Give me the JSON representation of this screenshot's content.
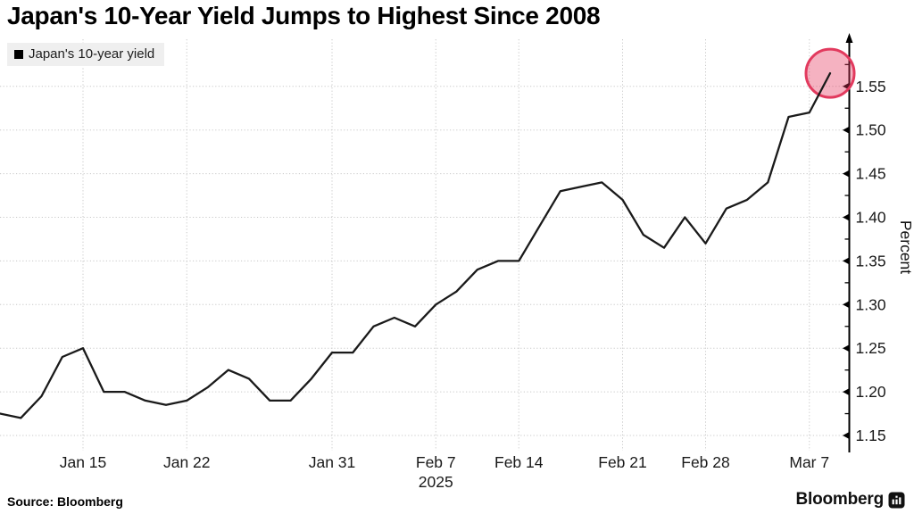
{
  "header": {
    "title": "Japan's 10-Year Yield Jumps to Highest Since 2008"
  },
  "legend": {
    "label": "Japan's 10-year yield",
    "marker_color": "#000000"
  },
  "chart_data": {
    "type": "line",
    "title": "Japan's 10-Year Yield Jumps to Highest Since 2008",
    "ylabel": "Percent",
    "grid": "dotted",
    "legend_position": "top-left",
    "colors": {
      "line": "#1a1a1a",
      "grid": "#c8c8c8",
      "axis": "#000000",
      "tick_text": "#1a1a1a"
    },
    "y_axis": {
      "side": "right",
      "min": 1.15,
      "max": 1.58,
      "major_ticks": [
        1.15,
        1.2,
        1.25,
        1.3,
        1.35,
        1.4,
        1.45,
        1.5,
        1.55
      ],
      "minor_tick_step": 0.025,
      "unit_label": "Percent"
    },
    "x_axis": {
      "ticks": [
        {
          "label": "Jan 15",
          "point_index": 4
        },
        {
          "label": "Jan 22",
          "point_index": 9
        },
        {
          "label": "Jan 31",
          "point_index": 16
        },
        {
          "label": "Feb 7",
          "point_index": 21
        },
        {
          "label": "Feb 14",
          "point_index": 25
        },
        {
          "label": "Feb 21",
          "point_index": 30
        },
        {
          "label": "Feb 28",
          "point_index": 34
        },
        {
          "label": "Mar 7",
          "point_index": 39
        }
      ],
      "year": {
        "text": "2025",
        "point_index": 21
      }
    },
    "series": [
      {
        "name": "Japan's 10-year yield",
        "color": "#1a1a1a",
        "points": [
          {
            "date": "Jan 8",
            "value": 1.175
          },
          {
            "date": "Jan 9",
            "value": 1.17
          },
          {
            "date": "Jan 10",
            "value": 1.195
          },
          {
            "date": "Jan 14",
            "value": 1.24
          },
          {
            "date": "Jan 15",
            "value": 1.25
          },
          {
            "date": "Jan 16",
            "value": 1.2
          },
          {
            "date": "Jan 17",
            "value": 1.2
          },
          {
            "date": "Jan 20",
            "value": 1.19
          },
          {
            "date": "Jan 21",
            "value": 1.185
          },
          {
            "date": "Jan 22",
            "value": 1.19
          },
          {
            "date": "Jan 23",
            "value": 1.205
          },
          {
            "date": "Jan 24",
            "value": 1.225
          },
          {
            "date": "Jan 27",
            "value": 1.215
          },
          {
            "date": "Jan 28",
            "value": 1.19
          },
          {
            "date": "Jan 29",
            "value": 1.19
          },
          {
            "date": "Jan 30",
            "value": 1.215
          },
          {
            "date": "Jan 31",
            "value": 1.245
          },
          {
            "date": "Feb 3",
            "value": 1.245
          },
          {
            "date": "Feb 4",
            "value": 1.275
          },
          {
            "date": "Feb 5",
            "value": 1.285
          },
          {
            "date": "Feb 6",
            "value": 1.275
          },
          {
            "date": "Feb 7",
            "value": 1.3
          },
          {
            "date": "Feb 10",
            "value": 1.315
          },
          {
            "date": "Feb 12",
            "value": 1.34
          },
          {
            "date": "Feb 13",
            "value": 1.35
          },
          {
            "date": "Feb 14",
            "value": 1.35
          },
          {
            "date": "Feb 17",
            "value": 1.39
          },
          {
            "date": "Feb 18",
            "value": 1.43
          },
          {
            "date": "Feb 19",
            "value": 1.435
          },
          {
            "date": "Feb 20",
            "value": 1.44
          },
          {
            "date": "Feb 21",
            "value": 1.42
          },
          {
            "date": "Feb 25",
            "value": 1.38
          },
          {
            "date": "Feb 26",
            "value": 1.365
          },
          {
            "date": "Feb 27",
            "value": 1.4
          },
          {
            "date": "Feb 28",
            "value": 1.37
          },
          {
            "date": "Mar 3",
            "value": 1.41
          },
          {
            "date": "Mar 4",
            "value": 1.42
          },
          {
            "date": "Mar 5",
            "value": 1.44
          },
          {
            "date": "Mar 6",
            "value": 1.515
          },
          {
            "date": "Mar 7",
            "value": 1.52
          },
          {
            "date": "Mar 10",
            "value": 1.565
          }
        ]
      }
    ],
    "highlight": {
      "type": "circle",
      "point_date": "Mar 10",
      "fill": "rgba(230,52,91,0.38)",
      "stroke": "#e23a5e"
    }
  },
  "footer": {
    "source": "Source: Bloomberg",
    "brand": "Bloomberg"
  }
}
